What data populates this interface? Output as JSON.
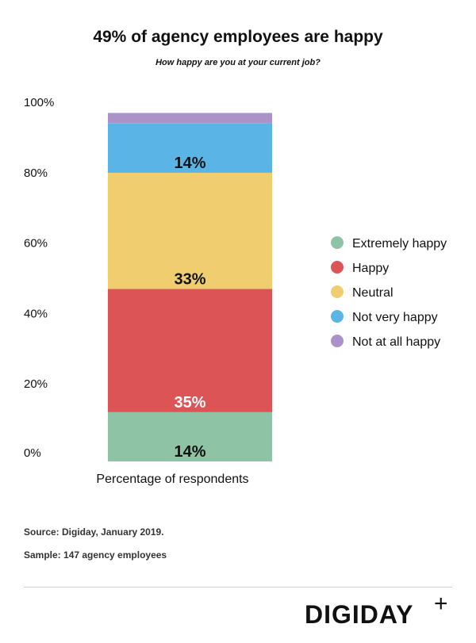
{
  "header": {
    "title": "49% of agency employees are happy",
    "subtitle": "How happy are you at your current job?"
  },
  "chart_data": {
    "type": "bar",
    "stacked": true,
    "categories": [
      "Percentage of respondents"
    ],
    "xlabel": "Percentage of respondents",
    "ylabel": "",
    "ylim": [
      0,
      100
    ],
    "yticks": [
      "0%",
      "20%",
      "40%",
      "60%",
      "80%",
      "100%"
    ],
    "legend_position": "right",
    "series": [
      {
        "name": "Extremely happy",
        "value": 14,
        "label": "14%",
        "color": "#8fc3a6",
        "label_color": "#111111"
      },
      {
        "name": "Happy",
        "value": 35,
        "label": "35%",
        "color": "#dc5456",
        "label_color": "#ffffff"
      },
      {
        "name": "Neutral",
        "value": 33,
        "label": "33%",
        "color": "#f0cd6e",
        "label_color": "#111111"
      },
      {
        "name": "Not very happy",
        "value": 14,
        "label": "14%",
        "color": "#5ab5e6",
        "label_color": "#111111"
      },
      {
        "name": "Not at all happy",
        "value": 3,
        "label": "",
        "color": "#ab93c9",
        "label_color": "#111111"
      }
    ]
  },
  "footer": {
    "source": "Source:  Digiday, January 2019.",
    "sample": "Sample: 147 agency employees",
    "logo": "DIGIDAY",
    "logo_mark": "+"
  }
}
